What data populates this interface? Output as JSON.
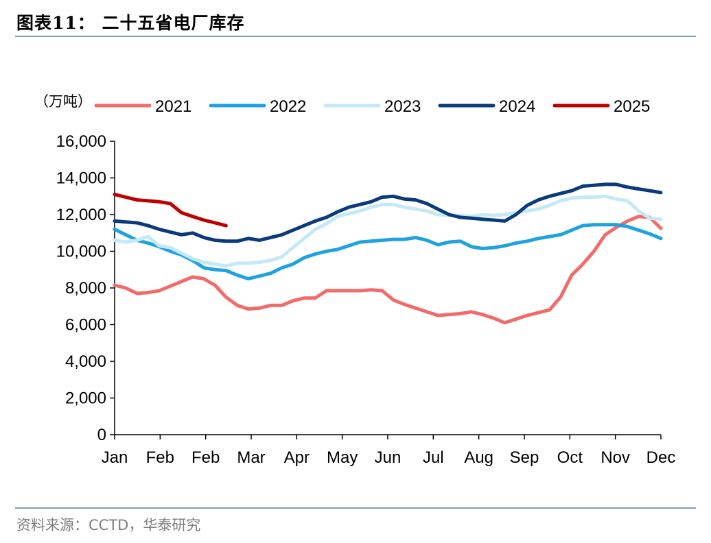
{
  "header": {
    "title": "图表11： 二十五省电厂库存"
  },
  "footer": {
    "source": "资料来源：CCTD，华泰研究"
  },
  "chart_data": {
    "type": "line",
    "unit_label": "（万吨）",
    "ylim": [
      0,
      16000
    ],
    "y_ticks": [
      "0",
      "2,000",
      "4,000",
      "6,000",
      "8,000",
      "10,000",
      "12,000",
      "14,000",
      "16,000"
    ],
    "x_ticks": [
      "Jan",
      "Feb",
      "Feb",
      "Mar",
      "Apr",
      "May",
      "Jun",
      "Jul",
      "Aug",
      "Sep",
      "Oct",
      "Nov",
      "Dec"
    ],
    "legend_position": "top",
    "series": [
      {
        "name": "2021",
        "color": "#f26b6b",
        "values": [
          8150,
          8000,
          7700,
          7750,
          7850,
          8100,
          8350,
          8600,
          8500,
          8150,
          7500,
          7050,
          6850,
          6900,
          7050,
          7050,
          7300,
          7450,
          7450,
          7850,
          7850,
          7850,
          7850,
          7900,
          7850,
          7350,
          7100,
          6900,
          6700,
          6500,
          6550,
          6600,
          6700,
          6550,
          6350,
          6100,
          6300,
          6500,
          6650,
          6800,
          7500,
          8700,
          9300,
          10000,
          10900,
          11300,
          11650,
          11900,
          11850,
          11250
        ]
      },
      {
        "name": "2022",
        "color": "#1fa2e0",
        "values": [
          11200,
          10900,
          10600,
          10450,
          10250,
          10000,
          9800,
          9500,
          9100,
          9000,
          8950,
          8700,
          8500,
          8650,
          8800,
          9100,
          9300,
          9650,
          9850,
          10000,
          10100,
          10300,
          10500,
          10550,
          10600,
          10650,
          10650,
          10750,
          10600,
          10350,
          10500,
          10550,
          10250,
          10150,
          10200,
          10300,
          10450,
          10550,
          10700,
          10800,
          10900,
          11150,
          11400,
          11450,
          11450,
          11450,
          11350,
          11150,
          10950,
          10700
        ]
      },
      {
        "name": "2023",
        "color": "#c5e8f7",
        "values": [
          10600,
          10500,
          10600,
          10800,
          10300,
          10200,
          9900,
          9600,
          9400,
          9300,
          9200,
          9350,
          9350,
          9400,
          9500,
          9700,
          10200,
          10700,
          11200,
          11500,
          11900,
          12050,
          12200,
          12400,
          12550,
          12550,
          12400,
          12300,
          12200,
          12000,
          11950,
          11950,
          11900,
          12000,
          11950,
          12000,
          12100,
          12200,
          12300,
          12500,
          12750,
          12900,
          12950,
          12950,
          13000,
          12850,
          12750,
          12200,
          11800,
          11750
        ]
      },
      {
        "name": "2024",
        "color": "#0b3a7a",
        "values": [
          11650,
          11600,
          11550,
          11400,
          11200,
          11050,
          10900,
          11000,
          10750,
          10600,
          10550,
          10550,
          10700,
          10600,
          10750,
          10900,
          11150,
          11400,
          11650,
          11850,
          12150,
          12400,
          12550,
          12700,
          12950,
          13000,
          12850,
          12800,
          12600,
          12300,
          12000,
          11850,
          11800,
          11750,
          11700,
          11650,
          12000,
          12500,
          12800,
          13000,
          13150,
          13300,
          13550,
          13600,
          13650,
          13650,
          13500,
          13400,
          13300,
          13200
        ]
      },
      {
        "name": "2025",
        "color": "#c00000",
        "values": [
          13100,
          12950,
          12800,
          12750,
          12700,
          12600,
          12100,
          11900,
          11700,
          11550,
          11400
        ]
      }
    ]
  }
}
